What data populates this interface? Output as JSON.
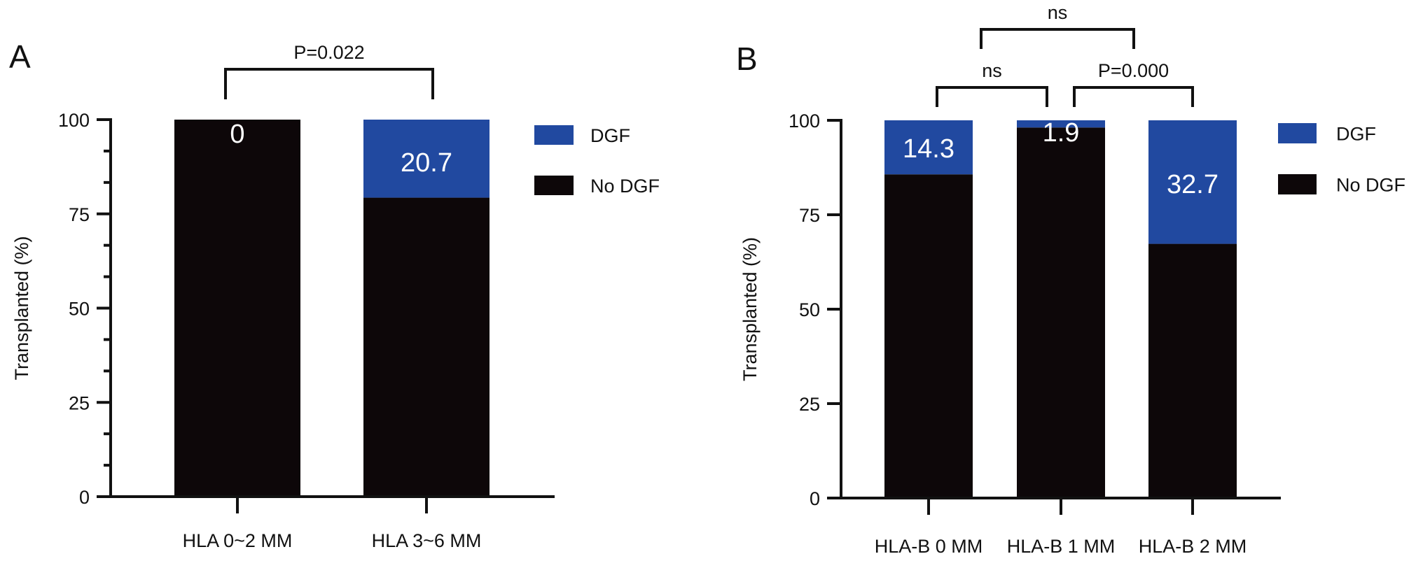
{
  "chart_data": [
    {
      "panel": "A",
      "type": "bar",
      "stacked": true,
      "ylabel": "Transplanted (%)",
      "ylim": [
        0,
        100
      ],
      "yticks": [
        0,
        25,
        50,
        75,
        100
      ],
      "categories": [
        "HLA 0~2 MM",
        "HLA 3~6 MM"
      ],
      "series": [
        {
          "name": "No DGF",
          "color": "#0d0709",
          "values": [
            100,
            79.3
          ]
        },
        {
          "name": "DGF",
          "color": "#2149a0",
          "values": [
            0,
            20.7
          ]
        }
      ],
      "data_labels": [
        "0",
        "20.7"
      ],
      "legend": {
        "placement": "right",
        "entries": [
          "DGF",
          "No DGF"
        ]
      },
      "comparisons": [
        {
          "from": 0,
          "to": 1,
          "label": "P=0.022",
          "level": 0
        }
      ]
    },
    {
      "panel": "B",
      "type": "bar",
      "stacked": true,
      "ylabel": "Transplanted (%)",
      "ylim": [
        0,
        100
      ],
      "yticks": [
        0,
        25,
        50,
        75,
        100
      ],
      "categories": [
        "HLA-B 0 MM",
        "HLA-B 1 MM",
        "HLA-B 2 MM"
      ],
      "series": [
        {
          "name": "No DGF",
          "color": "#0d0709",
          "values": [
            85.7,
            98.1,
            67.3
          ]
        },
        {
          "name": "DGF",
          "color": "#2149a0",
          "values": [
            14.3,
            1.9,
            32.7
          ]
        }
      ],
      "data_labels": [
        "14.3",
        "1.9",
        "32.7"
      ],
      "legend": {
        "placement": "right",
        "entries": [
          "DGF",
          "No DGF"
        ]
      },
      "comparisons": [
        {
          "from": 0,
          "to": 1,
          "label": "ns",
          "level": 0
        },
        {
          "from": 1,
          "to": 2,
          "label": "P=0.000",
          "level": 0
        },
        {
          "from": 0,
          "to": 2,
          "label": "ns",
          "level": 1
        }
      ]
    }
  ]
}
